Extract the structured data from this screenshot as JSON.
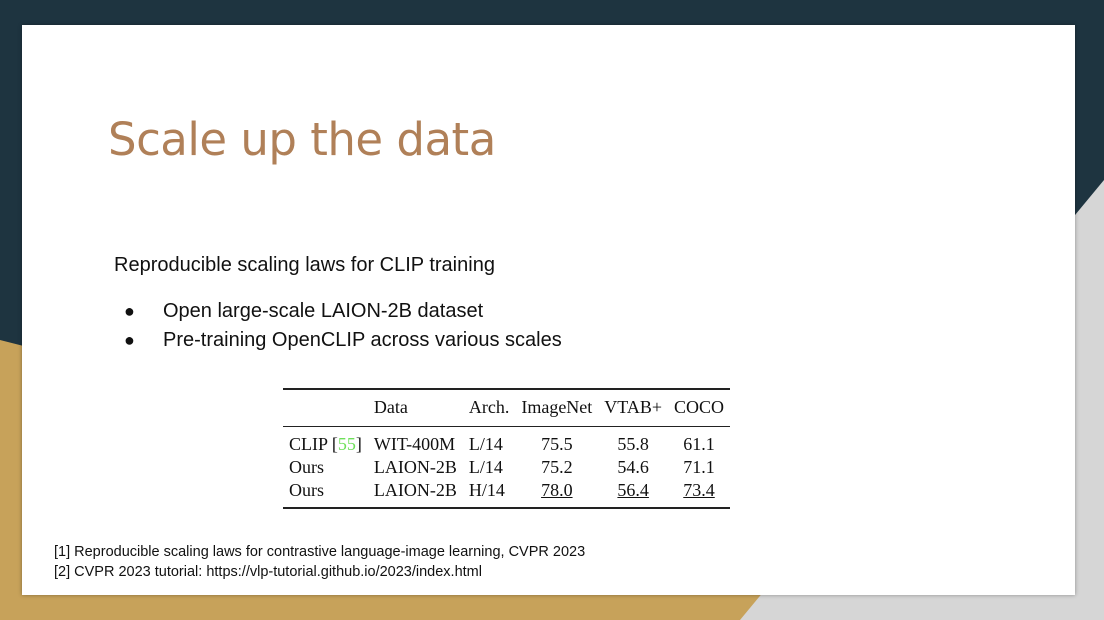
{
  "slide": {
    "title": "Scale up the data",
    "subtitle": "Reproducible scaling laws for CLIP training",
    "bullets": [
      "Open large-scale LAION-2B dataset",
      "Pre-training OpenCLIP across various scales"
    ],
    "bullet_glyph": "●"
  },
  "table": {
    "headers": [
      "",
      "Data",
      "Arch.",
      "ImageNet",
      "VTAB+",
      "COCO"
    ],
    "rows": [
      {
        "model": "CLIP [",
        "ref": "55",
        "ref_close": "]",
        "data": "WIT-400M",
        "arch": "L/14",
        "imagenet": "75.5",
        "vtab": "55.8",
        "coco": "61.1"
      },
      {
        "model": "Ours",
        "data": "LAION-2B",
        "arch": "L/14",
        "imagenet": "75.2",
        "vtab": "54.6",
        "coco": "71.1"
      },
      {
        "model": "Ours",
        "data": "LAION-2B",
        "arch": "H/14",
        "imagenet": "78.0",
        "vtab": "56.4",
        "coco": "73.4"
      }
    ]
  },
  "footnotes": [
    "[1] Reproducible scaling laws for contrastive language-image learning, CVPR 2023",
    "[2] CVPR 2023 tutorial: https://vlp-tutorial.github.io/2023/index.html"
  ],
  "colors": {
    "background_dark": "#1e3440",
    "background_gold": "#c7a25a",
    "background_gray": "#d6d6d6",
    "title": "#b08058",
    "citation": "#6ee05a"
  }
}
